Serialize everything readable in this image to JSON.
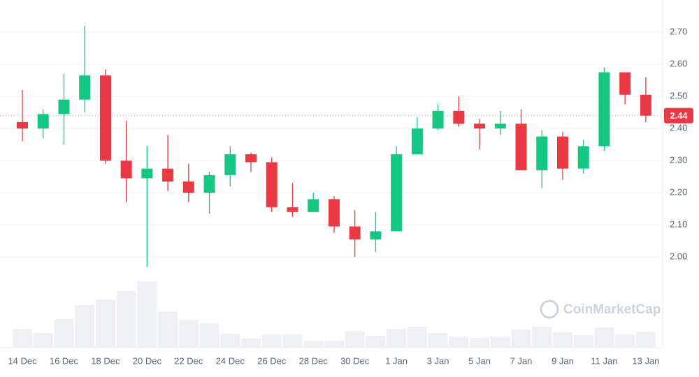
{
  "chart_data": {
    "type": "candlestick",
    "categories": [
      "14 Dec",
      null,
      "16 Dec",
      null,
      "18 Dec",
      null,
      "20 Dec",
      null,
      "22 Dec",
      null,
      "24 Dec",
      null,
      "26 Dec",
      null,
      "28 Dec",
      null,
      "30 Dec",
      null,
      "1 Jan",
      null,
      "3 Jan",
      null,
      "5 Jan",
      null,
      "7 Jan",
      null,
      "9 Jan",
      null,
      "11 Jan",
      null,
      "13 Jan"
    ],
    "open": [
      2.42,
      2.4,
      2.445,
      2.49,
      2.565,
      2.3,
      2.245,
      2.275,
      2.235,
      2.2,
      2.255,
      2.32,
      2.295,
      2.155,
      2.14,
      2.18,
      2.095,
      2.055,
      2.08,
      2.32,
      2.4,
      2.455,
      2.415,
      2.4,
      2.415,
      2.27,
      2.375,
      2.275,
      2.345,
      2.575,
      2.505
    ],
    "high": [
      2.52,
      2.46,
      2.57,
      2.72,
      2.585,
      2.425,
      2.345,
      2.38,
      2.29,
      2.265,
      2.345,
      2.325,
      2.31,
      2.23,
      2.2,
      2.19,
      2.145,
      2.14,
      2.345,
      2.435,
      2.475,
      2.5,
      2.43,
      2.455,
      2.46,
      2.395,
      2.39,
      2.365,
      2.59,
      2.575,
      2.56
    ],
    "low": [
      2.36,
      2.37,
      2.35,
      2.45,
      2.29,
      2.17,
      1.97,
      2.205,
      2.17,
      2.135,
      2.22,
      2.265,
      2.14,
      2.125,
      2.14,
      2.075,
      2.0,
      2.015,
      2.08,
      2.32,
      2.395,
      2.405,
      2.335,
      2.38,
      2.27,
      2.215,
      2.24,
      2.26,
      2.33,
      2.475,
      2.42
    ],
    "close": [
      2.4,
      2.445,
      2.49,
      2.565,
      2.3,
      2.245,
      2.275,
      2.235,
      2.2,
      2.255,
      2.32,
      2.295,
      2.155,
      2.14,
      2.18,
      2.095,
      2.055,
      2.08,
      2.32,
      2.4,
      2.455,
      2.415,
      2.4,
      2.415,
      2.27,
      2.375,
      2.275,
      2.345,
      2.575,
      2.505,
      2.44
    ],
    "volume": [
      26,
      20,
      40,
      60,
      68,
      80,
      94,
      51,
      39,
      34,
      19,
      12,
      18,
      18,
      9,
      9,
      23,
      16,
      26,
      29,
      20,
      15,
      13,
      15,
      25,
      29,
      21,
      17,
      28,
      18,
      22
    ],
    "up_color": "#16c784",
    "down_color": "#ea3943",
    "volume_color": "#eff0f3",
    "ylim": [
      1.72,
      2.8
    ],
    "yticks": [
      {
        "value": 2.0,
        "label": "2.00"
      },
      {
        "value": 2.1,
        "label": "2.10"
      },
      {
        "value": 2.2,
        "label": "2.20"
      },
      {
        "value": 2.3,
        "label": "2.30"
      },
      {
        "value": 2.4,
        "label": "2.40"
      },
      {
        "value": 2.5,
        "label": "2.50"
      },
      {
        "value": 2.6,
        "label": "2.60"
      },
      {
        "value": 2.7,
        "label": "2.70"
      }
    ],
    "grid": true,
    "last_price": {
      "value": 2.44,
      "label": "2.44"
    },
    "watermark": "CoinMarketCap"
  }
}
